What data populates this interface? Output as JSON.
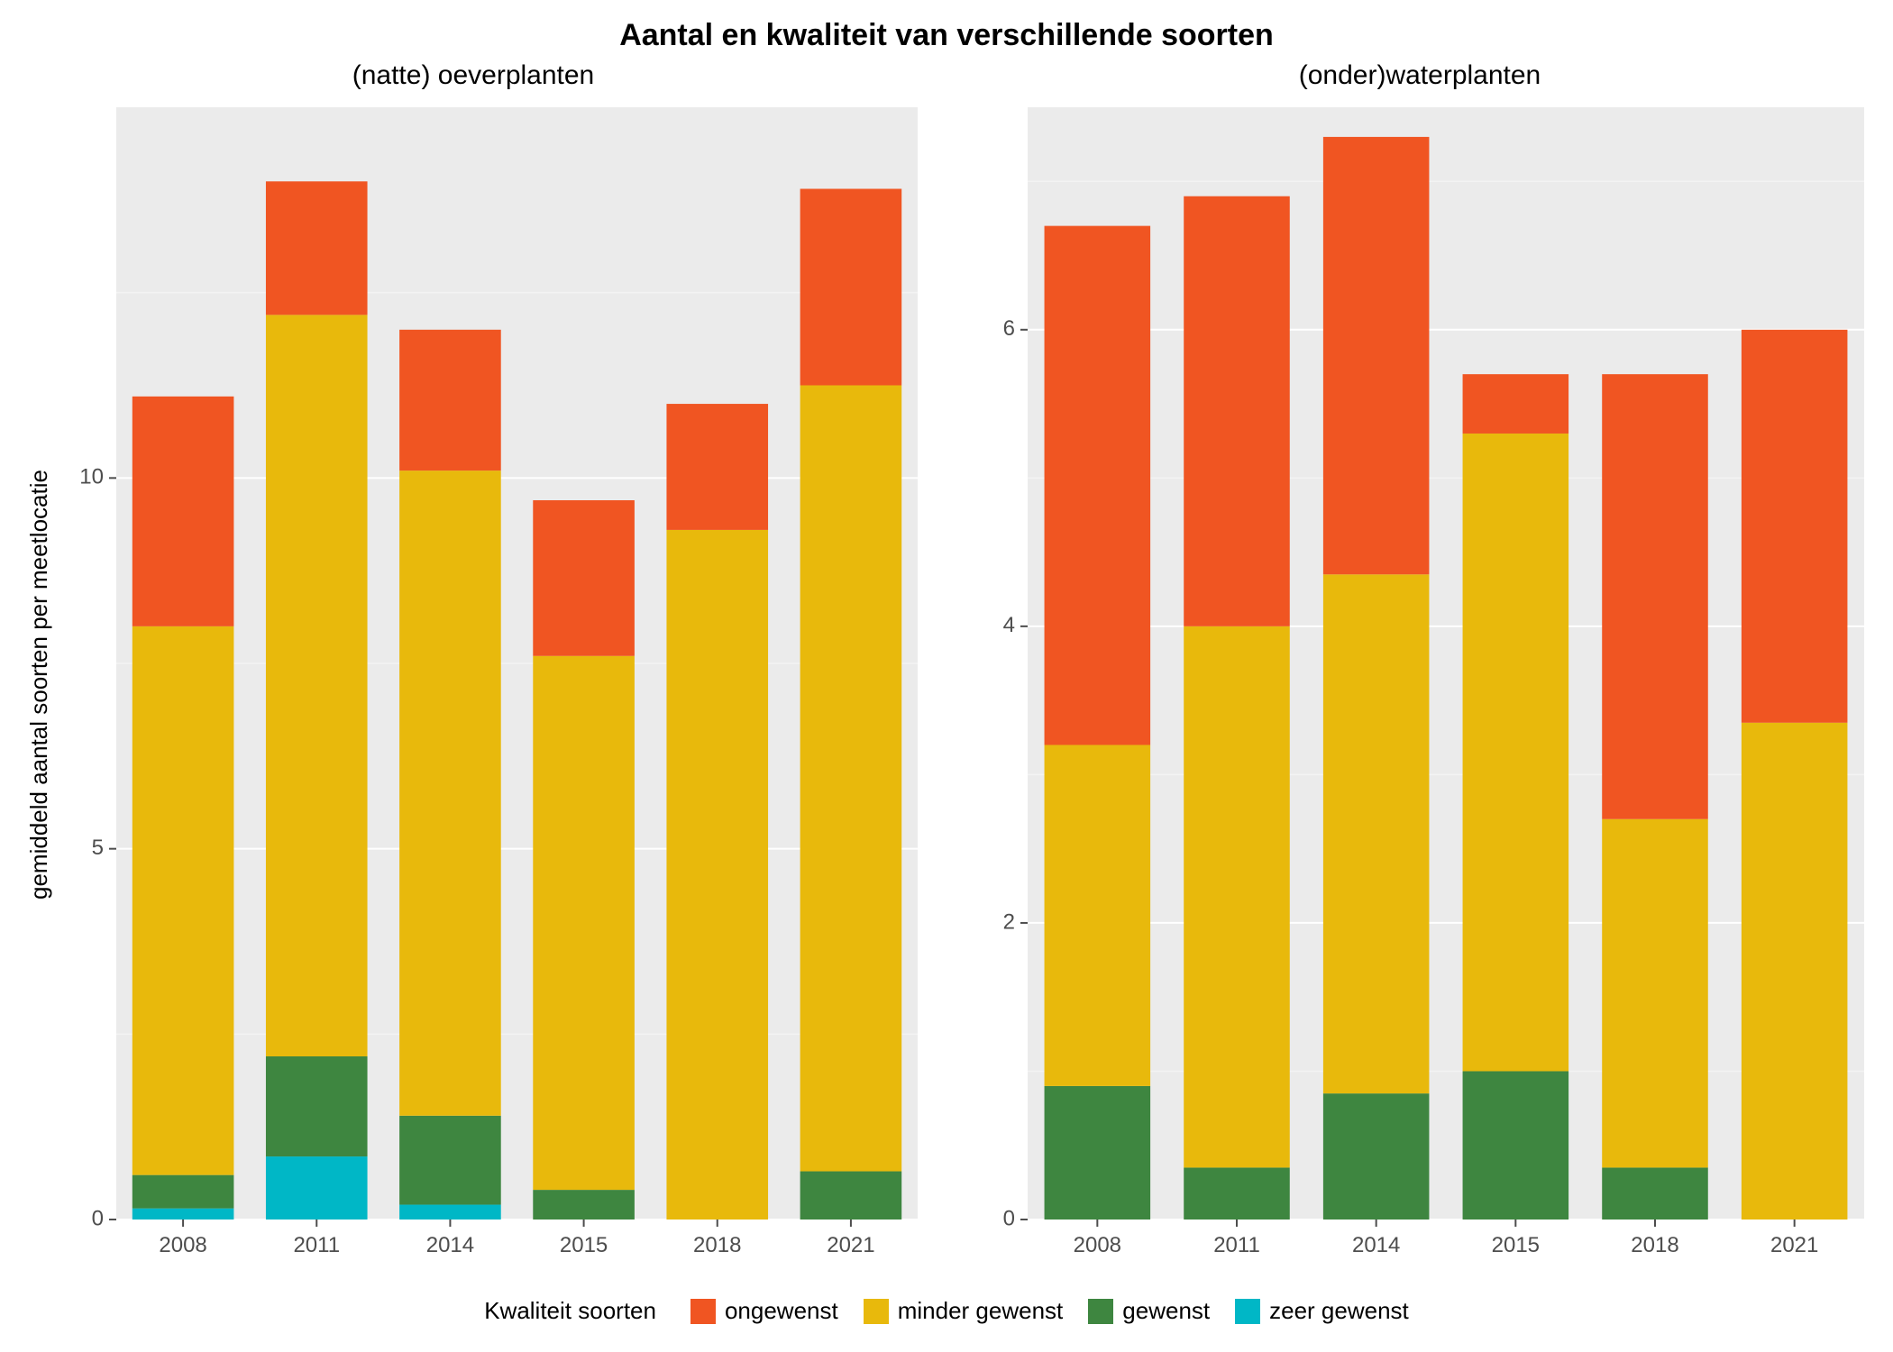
{
  "title": "Aantal en kwaliteit van verschillende soorten",
  "title_fontsize": 34,
  "panel_title_fontsize": 30,
  "axis_label_fontsize": 26,
  "tick_fontsize": 24,
  "legend_title_fontsize": 26,
  "legend_item_fontsize": 26,
  "y_axis_label": "gemiddeld aantal soorten per meetlocatie",
  "background_color": "#ffffff",
  "panel_bg": "#ebebeb",
  "grid_color": "#ffffff",
  "grid_minor_color": "#f3f3f3",
  "tick_color": "#333333",
  "text_color": "#000000",
  "axis_text_color": "#4d4d4d",
  "bar_gap_ratio": 0.12,
  "legend": {
    "title": "Kwaliteit soorten",
    "items": [
      {
        "label": "ongewenst",
        "color": "#f05522"
      },
      {
        "label": "minder gewenst",
        "color": "#e8b90c"
      },
      {
        "label": "gewenst",
        "color": "#3e8640"
      },
      {
        "label": "zeer gewenst",
        "color": "#00b7c6"
      }
    ]
  },
  "series_order_bottom_to_top": [
    "zeer_gewenst",
    "gewenst",
    "minder_gewenst",
    "ongewenst"
  ],
  "series_colors": {
    "ongewenst": "#f05522",
    "minder_gewenst": "#e8b90c",
    "gewenst": "#3e8640",
    "zeer_gewenst": "#00b7c6"
  },
  "panels": [
    {
      "id": "left",
      "title": "(natte) oeverplanten",
      "ylim": [
        0,
        15
      ],
      "ytick_step": 5,
      "yticks": [
        0,
        5,
        10
      ],
      "categories": [
        "2008",
        "2011",
        "2014",
        "2015",
        "2018",
        "2021"
      ],
      "data": {
        "zeer_gewenst": [
          0.15,
          0.85,
          0.2,
          0.0,
          0.0,
          0.0
        ],
        "gewenst": [
          0.45,
          1.35,
          1.2,
          0.4,
          0.0,
          0.65
        ],
        "minder_gewenst": [
          7.4,
          10.0,
          8.7,
          7.2,
          9.3,
          10.6
        ],
        "ongewenst": [
          3.1,
          1.8,
          1.9,
          2.1,
          1.7,
          2.65
        ]
      }
    },
    {
      "id": "right",
      "title": "(onder)waterplanten",
      "ylim": [
        0,
        7.5
      ],
      "ytick_step": 2,
      "yticks": [
        0,
        2,
        4,
        6
      ],
      "categories": [
        "2008",
        "2011",
        "2014",
        "2015",
        "2018",
        "2021"
      ],
      "data": {
        "zeer_gewenst": [
          0.0,
          0.0,
          0.0,
          0.0,
          0.0,
          0.0
        ],
        "gewenst": [
          0.9,
          0.35,
          0.85,
          1.0,
          0.35,
          0.0
        ],
        "minder_gewenst": [
          2.3,
          3.65,
          3.5,
          4.3,
          2.35,
          3.35
        ],
        "ongewenst": [
          3.5,
          2.9,
          2.95,
          0.4,
          3.0,
          2.65
        ]
      }
    }
  ]
}
